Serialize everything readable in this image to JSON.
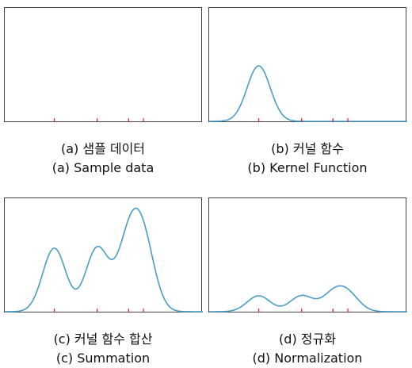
{
  "panels": [
    {
      "id": "a",
      "caption_ko": "(a) 샘플 데이터",
      "caption_en": "(a) Sample data"
    },
    {
      "id": "b",
      "caption_ko": "(b) 커널 함수",
      "caption_en": "(b) Kernel Function"
    },
    {
      "id": "c",
      "caption_ko": "(c) 커널 함수 합산",
      "caption_en": "(c) Summation"
    },
    {
      "id": "d",
      "caption_ko": "(d) 정규화",
      "caption_en": "(d) Normalization"
    }
  ],
  "colors": {
    "curve": "#4a9cc9",
    "sample_tick": "#e02020",
    "frame": "#444444"
  },
  "samples": [
    2.0,
    4.6,
    6.5,
    7.4
  ],
  "kernel": {
    "center": 2.0,
    "bandwidth": 0.7
  },
  "x_range": [
    -1,
    11
  ]
}
